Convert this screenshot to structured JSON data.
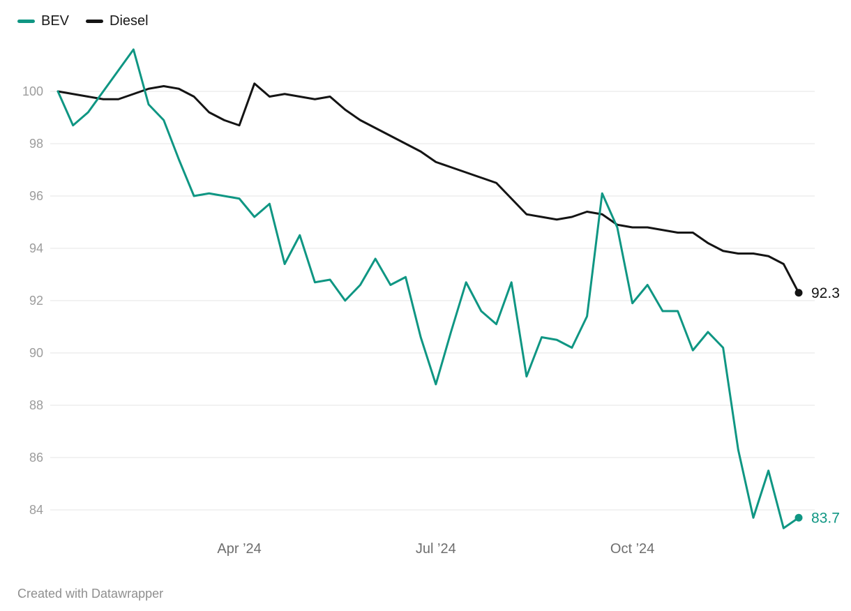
{
  "legend": [
    {
      "label": "BEV",
      "color": "#0f9683"
    },
    {
      "label": "Diesel",
      "color": "#141414"
    }
  ],
  "footer": {
    "attribution": "Created with Datawrapper"
  },
  "chart_data": {
    "type": "line",
    "title": "",
    "xlabel": "",
    "ylabel": "",
    "x_type": "time (weekly, 2024)",
    "x_tick_labels": [
      "Apr ’24",
      "Jul ’24",
      "Oct ’24"
    ],
    "x_tick_positions": [
      12,
      25,
      38
    ],
    "y_ticks": [
      84,
      86,
      88,
      90,
      92,
      94,
      96,
      98,
      100
    ],
    "ylim": [
      83,
      102
    ],
    "grid": true,
    "legend_position": "top-left",
    "series": [
      {
        "name": "Diesel",
        "color": "#141414",
        "end_label": "92.3",
        "values": [
          100.0,
          99.9,
          99.8,
          99.7,
          99.7,
          99.9,
          100.1,
          100.2,
          100.1,
          99.8,
          99.2,
          98.9,
          98.7,
          100.3,
          99.8,
          99.9,
          99.8,
          99.7,
          99.8,
          99.3,
          98.9,
          98.6,
          98.3,
          98.0,
          97.7,
          97.3,
          97.1,
          96.9,
          96.7,
          96.5,
          95.9,
          95.3,
          95.2,
          95.1,
          95.2,
          95.4,
          95.3,
          94.9,
          94.8,
          94.8,
          94.7,
          94.6,
          94.6,
          94.2,
          93.9,
          93.8,
          93.8,
          93.7,
          93.4,
          92.3
        ]
      },
      {
        "name": "BEV",
        "color": "#0f9683",
        "end_label": "83.7",
        "values": [
          100.0,
          98.7,
          99.2,
          100.0,
          100.8,
          101.6,
          99.5,
          98.9,
          97.4,
          96.0,
          96.1,
          96.0,
          95.9,
          95.2,
          95.7,
          93.4,
          94.5,
          92.7,
          92.8,
          92.0,
          92.6,
          93.6,
          92.6,
          92.9,
          90.6,
          88.8,
          90.8,
          92.7,
          91.6,
          91.1,
          92.7,
          89.1,
          90.6,
          90.5,
          90.2,
          91.4,
          96.1,
          94.8,
          91.9,
          92.6,
          91.6,
          91.6,
          90.1,
          90.8,
          90.2,
          86.3,
          83.7,
          85.5,
          83.3,
          83.7
        ]
      }
    ],
    "style": {
      "gridline_color": "#e4e4e4",
      "y_tick_label_color": "#9c9c9c",
      "x_tick_label_color": "#6e6e6e"
    }
  }
}
